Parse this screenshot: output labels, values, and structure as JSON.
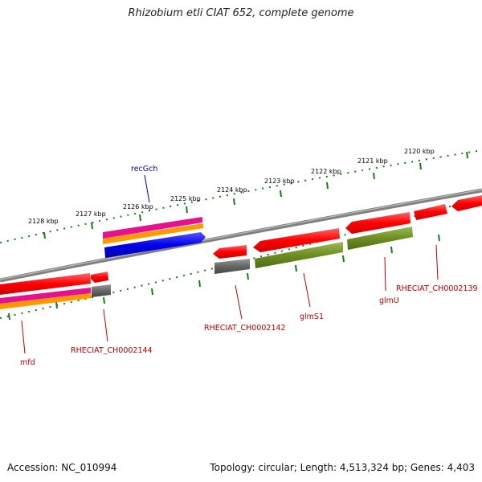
{
  "title": "Rhizobium etli CIAT 652, complete genome",
  "footer": {
    "accession": "Accession: NC_010994",
    "summary": "Topology: circular; Length: 4,513,324 bp; Genes: 4,403"
  },
  "kbp_labels": [
    "2128 kbp",
    "2127 kbp",
    "2126 kbp",
    "2125 kbp",
    "2124 kbp",
    "2123 kbp",
    "2122 kbp",
    "2121 kbp",
    "2120 kbp"
  ],
  "gene_labels": {
    "recGch": "recGch",
    "mfd": "mfd",
    "ch0002144": "RHECIAT_CH0002144",
    "ch0002142": "RHECIAT_CH0002142",
    "glmS1": "glmS1",
    "glmU": "glmU",
    "ch0002139": "RHECIAT_CH0002139"
  },
  "colors": {
    "cds": "#ff0000",
    "gene_gray": "#666666",
    "olive": "#6e8e23",
    "blue": "#0000ee",
    "magenta": "#e8108c",
    "orange": "#ff9900",
    "backbone": "#808080",
    "ticks": "#1a7a1a",
    "label_red": "#c00000",
    "label_blue": "#0000aa"
  }
}
